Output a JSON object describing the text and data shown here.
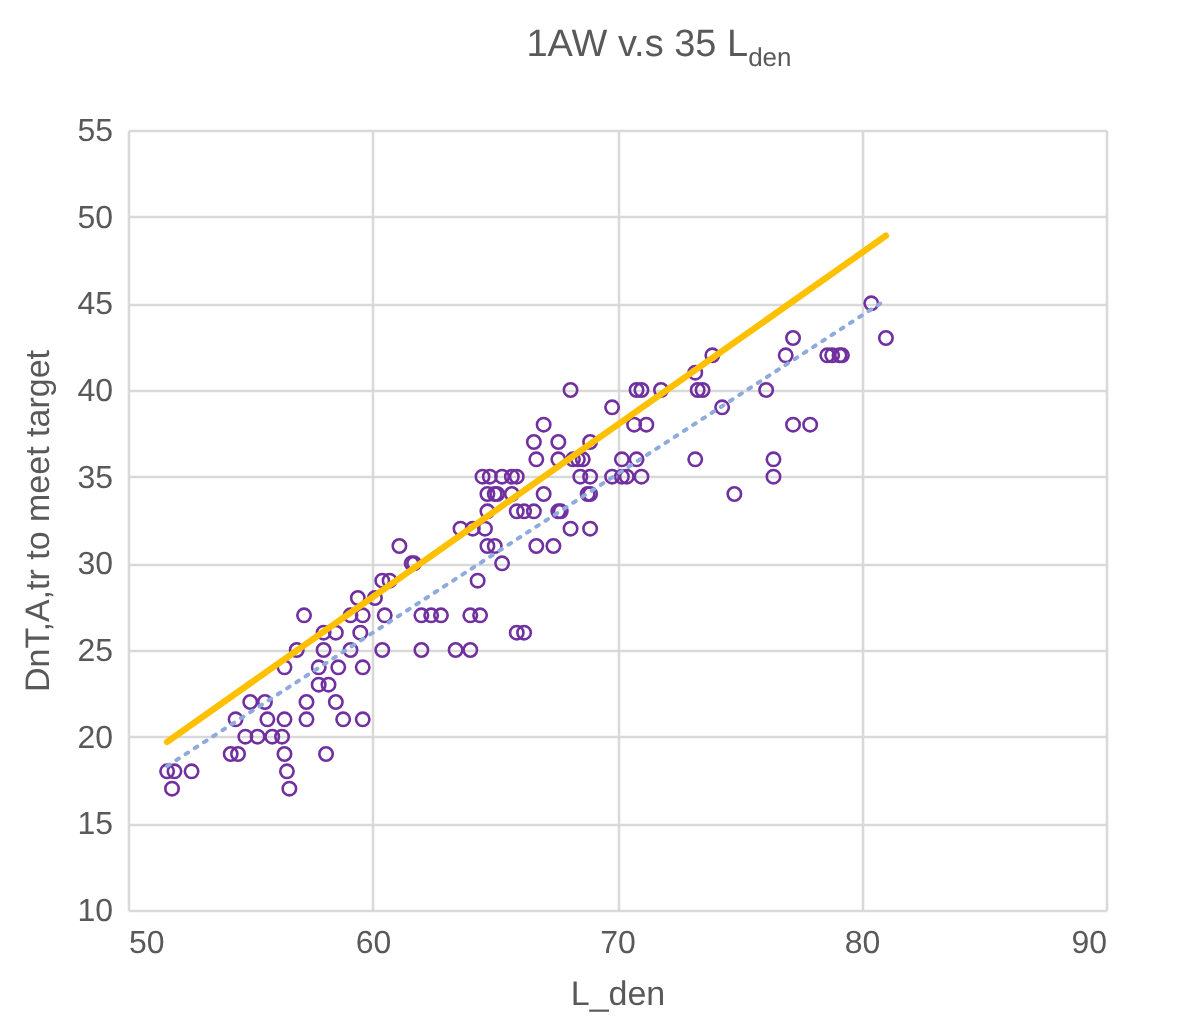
{
  "chart_data": {
    "type": "scatter",
    "title": "1AW v.s 35 L$_{den}$",
    "xlabel": "L_den",
    "ylabel": "DnT,A,tr to meet target",
    "xlim": [
      50,
      90
    ],
    "xticks": [
      50,
      60,
      70,
      80,
      90
    ],
    "ylim": [
      10,
      55
    ],
    "yticks": [
      10,
      15,
      20,
      25,
      30,
      35,
      40,
      45,
      50,
      55
    ],
    "grid": true,
    "series": [
      {
        "marker": "circle",
        "color": "#7030a0",
        "x": [
          51.6,
          51.9,
          51.8,
          52.6,
          54.2,
          54.5,
          54.8,
          55.3,
          55.9,
          56.3,
          54.4,
          55.0,
          55.6,
          55.7,
          56.4,
          56.4,
          56.5,
          56.6,
          58.1,
          57.3,
          57.3,
          58.5,
          58.8,
          59.6,
          56.4,
          56.9,
          57.8,
          57.8,
          58.2,
          58.6,
          59.6,
          58.0,
          58.0,
          58.5,
          59.1,
          60.4,
          59.5,
          57.2,
          62.0,
          63.4,
          64.0,
          65.9,
          66.2,
          59.1,
          59.6,
          60.5,
          62.0,
          62.4,
          62.8,
          64.0,
          64.4,
          59.4,
          60.1,
          60.4,
          60.7,
          61.6,
          61.7,
          61.1,
          64.3,
          65.3,
          64.7,
          65.0,
          66.7,
          67.4,
          63.6,
          64.1,
          64.6,
          64.7,
          68.1,
          68.9,
          64.5,
          64.8,
          65.3,
          65.7,
          65.9,
          64.7,
          65.0,
          65.7,
          65.9,
          66.2,
          66.6,
          67.0,
          67.6,
          67.7,
          66.7,
          67.6,
          68.2,
          68.8,
          68.5,
          68.9,
          73.9,
          73.2,
          73.3,
          73.5,
          76.1,
          74.3,
          68.1,
          70.8,
          71.0,
          71.8,
          69.8,
          70.7,
          71.2,
          67.0,
          66.6,
          67.6,
          68.9,
          68.4,
          68.6,
          70.2,
          70.8,
          73.2,
          76.4,
          69.8,
          70.2,
          70.4,
          71.0,
          65.1,
          68.9,
          74.8,
          76.4,
          80.4,
          81.0,
          77.2,
          76.9,
          78.6,
          78.8,
          79.1,
          79.2,
          77.2,
          77.9
        ],
        "values": [
          18,
          18,
          17,
          18,
          19,
          19,
          20,
          20,
          20,
          20,
          21,
          22,
          22,
          21,
          21,
          19,
          18,
          17,
          19,
          21,
          22,
          22,
          21,
          21,
          24,
          25,
          24,
          23,
          23,
          24,
          24,
          25,
          26,
          26,
          25,
          25,
          26,
          27,
          25,
          25,
          25,
          26,
          26,
          27,
          27,
          27,
          27,
          27,
          27,
          27,
          27,
          28,
          28,
          29,
          29,
          30,
          30,
          31,
          29,
          30,
          31,
          31,
          31,
          31,
          32,
          32,
          32,
          33,
          32,
          32,
          35,
          35,
          35,
          35,
          35,
          34,
          34,
          34,
          33,
          33,
          33,
          34,
          33,
          33,
          36,
          36,
          36,
          34,
          35,
          35,
          42,
          41,
          40,
          40,
          40,
          39,
          40,
          40,
          40,
          40,
          39,
          38,
          38,
          38,
          37,
          37,
          37,
          36,
          36,
          36,
          36,
          36,
          36,
          35,
          35,
          35,
          35,
          34,
          34,
          34,
          35,
          45,
          43,
          43,
          42,
          42,
          42,
          42,
          42,
          38,
          38
        ]
      },
      {
        "type": "line",
        "color": "#ffc000",
        "x": [
          51.6,
          81.0
        ],
        "values": [
          19.7,
          48.9
        ]
      },
      {
        "type": "line",
        "color": "#8faadc",
        "line_style": "dotted",
        "x": [
          51.6,
          81.0
        ],
        "values": [
          18.3,
          45.2
        ]
      }
    ]
  }
}
